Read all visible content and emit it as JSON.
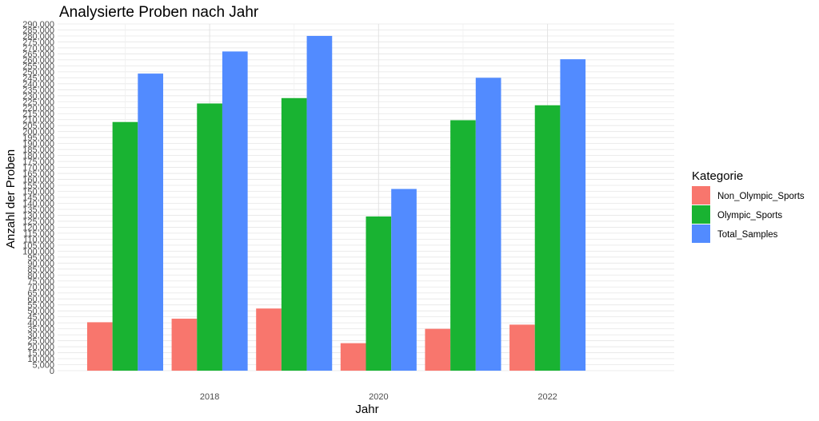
{
  "chart_data": {
    "type": "bar",
    "title": "Analysierte Proben nach Jahr",
    "xlabel": "Jahr",
    "ylabel": "Anzahl der Proben",
    "x_tick_labels": [
      {
        "x": 2018,
        "label": "2018"
      },
      {
        "x": 2020,
        "label": "2020"
      },
      {
        "x": 2022,
        "label": "2022"
      }
    ],
    "x_range": [
      2016.2,
      2023.5
    ],
    "ylim": [
      0,
      290000
    ],
    "y_tick_step": 5000,
    "grid": true,
    "legend": {
      "title": "Kategorie",
      "position": "right",
      "entries": [
        "Non_Olympic_Sports",
        "Olympic_Sports",
        "Total_Samples"
      ]
    },
    "years": [
      2017,
      2018,
      2019,
      2020,
      2021,
      2022
    ],
    "series": [
      {
        "name": "Non_Olympic_Sports",
        "color": "#F8766D",
        "values": [
          40500,
          43500,
          52000,
          23000,
          35000,
          38500
        ]
      },
      {
        "name": "Olympic_Sports",
        "color": "#19B332",
        "values": [
          208000,
          223500,
          228000,
          129000,
          209500,
          222000
        ]
      },
      {
        "name": "Total_Samples",
        "color": "#528BFF",
        "values": [
          248500,
          267000,
          280000,
          152000,
          245000,
          260500
        ]
      }
    ]
  }
}
